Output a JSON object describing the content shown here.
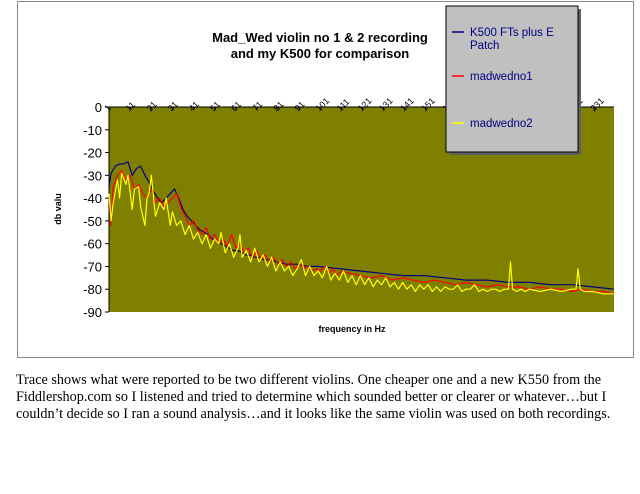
{
  "chart_data": {
    "type": "line",
    "title_line1": "Mad_Wed violin no 1 & 2 recording",
    "title_line2": "and my K500  for comparison",
    "xlabel": "frequency in Hz",
    "ylabel": "db valu",
    "ylim": [
      -90,
      0
    ],
    "yticks": [
      "0",
      "-10",
      "-20",
      "-30",
      "-40",
      "-50",
      "-60",
      "-70",
      "-80",
      "-90"
    ],
    "xticks": [
      "1",
      "11",
      "21",
      "31",
      "41",
      "51",
      "61",
      "71",
      "81",
      "91",
      "101",
      "111",
      "121",
      "131",
      "141",
      "151",
      "161",
      "171",
      "181",
      "191",
      "201",
      "211",
      "221",
      "231"
    ],
    "x_range": [
      1,
      240
    ],
    "plot_background": "#808000",
    "legend_position": "top-right",
    "series": [
      {
        "name": "K500 FTs plus E\nPatch",
        "color": "#000080",
        "points": [
          [
            1,
            -35
          ],
          [
            2,
            -29
          ],
          [
            4,
            -26
          ],
          [
            6,
            -25
          ],
          [
            8,
            -25
          ],
          [
            10,
            -24
          ],
          [
            12,
            -30
          ],
          [
            14,
            -27
          ],
          [
            16,
            -26
          ],
          [
            18,
            -30
          ],
          [
            20,
            -33
          ],
          [
            22,
            -37
          ],
          [
            24,
            -40
          ],
          [
            26,
            -42
          ],
          [
            28,
            -40
          ],
          [
            30,
            -38
          ],
          [
            32,
            -36
          ],
          [
            34,
            -40
          ],
          [
            36,
            -45
          ],
          [
            38,
            -48
          ],
          [
            40,
            -50
          ],
          [
            42,
            -52
          ],
          [
            44,
            -54
          ],
          [
            46,
            -55
          ],
          [
            48,
            -56
          ],
          [
            50,
            -58
          ],
          [
            52,
            -59
          ],
          [
            54,
            -60
          ],
          [
            56,
            -61
          ],
          [
            58,
            -62
          ],
          [
            60,
            -63
          ],
          [
            62,
            -63
          ],
          [
            64,
            -64
          ],
          [
            66,
            -65
          ],
          [
            68,
            -65
          ],
          [
            70,
            -66
          ],
          [
            72,
            -66
          ],
          [
            74,
            -67
          ],
          [
            76,
            -67
          ],
          [
            78,
            -67
          ],
          [
            80,
            -68
          ],
          [
            85,
            -69
          ],
          [
            90,
            -69
          ],
          [
            95,
            -70
          ],
          [
            100,
            -70
          ],
          [
            110,
            -71
          ],
          [
            120,
            -72
          ],
          [
            130,
            -73
          ],
          [
            140,
            -74
          ],
          [
            150,
            -74
          ],
          [
            160,
            -75
          ],
          [
            170,
            -76
          ],
          [
            180,
            -76
          ],
          [
            190,
            -77
          ],
          [
            200,
            -77
          ],
          [
            210,
            -78
          ],
          [
            220,
            -78
          ],
          [
            230,
            -79
          ],
          [
            240,
            -80
          ]
        ]
      },
      {
        "name": "madwedno1",
        "color": "#ff0000",
        "points": [
          [
            1,
            -40
          ],
          [
            2,
            -52
          ],
          [
            3,
            -35
          ],
          [
            5,
            -30
          ],
          [
            7,
            -28
          ],
          [
            9,
            -32
          ],
          [
            11,
            -30
          ],
          [
            13,
            -36
          ],
          [
            15,
            -34
          ],
          [
            17,
            -38
          ],
          [
            19,
            -40
          ],
          [
            21,
            -36
          ],
          [
            23,
            -42
          ],
          [
            25,
            -40
          ],
          [
            27,
            -44
          ],
          [
            29,
            -42
          ],
          [
            31,
            -40
          ],
          [
            33,
            -38
          ],
          [
            35,
            -44
          ],
          [
            37,
            -48
          ],
          [
            39,
            -52
          ],
          [
            41,
            -50
          ],
          [
            43,
            -54
          ],
          [
            45,
            -56
          ],
          [
            47,
            -53
          ],
          [
            49,
            -58
          ],
          [
            51,
            -56
          ],
          [
            53,
            -60
          ],
          [
            55,
            -58
          ],
          [
            57,
            -61
          ],
          [
            59,
            -56
          ],
          [
            61,
            -62
          ],
          [
            63,
            -60
          ],
          [
            65,
            -64
          ],
          [
            67,
            -62
          ],
          [
            69,
            -66
          ],
          [
            71,
            -63
          ],
          [
            73,
            -67
          ],
          [
            75,
            -65
          ],
          [
            77,
            -68
          ],
          [
            79,
            -66
          ],
          [
            81,
            -69
          ],
          [
            83,
            -67
          ],
          [
            85,
            -70
          ],
          [
            87,
            -68
          ],
          [
            89,
            -71
          ],
          [
            91,
            -69
          ],
          [
            93,
            -71
          ],
          [
            95,
            -70
          ],
          [
            97,
            -72
          ],
          [
            99,
            -71
          ],
          [
            101,
            -72
          ],
          [
            103,
            -70
          ],
          [
            105,
            -73
          ],
          [
            107,
            -71
          ],
          [
            109,
            -74
          ],
          [
            111,
            -72
          ],
          [
            115,
            -73
          ],
          [
            120,
            -74
          ],
          [
            125,
            -75
          ],
          [
            130,
            -74
          ],
          [
            135,
            -76
          ],
          [
            140,
            -75
          ],
          [
            145,
            -76
          ],
          [
            150,
            -77
          ],
          [
            155,
            -76
          ],
          [
            160,
            -77
          ],
          [
            165,
            -78
          ],
          [
            170,
            -77
          ],
          [
            175,
            -78
          ],
          [
            180,
            -79
          ],
          [
            185,
            -78
          ],
          [
            190,
            -79
          ],
          [
            195,
            -79
          ],
          [
            200,
            -80
          ],
          [
            205,
            -79
          ],
          [
            210,
            -80
          ],
          [
            215,
            -80
          ],
          [
            220,
            -81
          ],
          [
            225,
            -80
          ],
          [
            230,
            -81
          ],
          [
            235,
            -81
          ],
          [
            240,
            -82
          ]
        ]
      },
      {
        "name": "madwedno2",
        "color": "#ffff00",
        "points": [
          [
            1,
            -38
          ],
          [
            2,
            -50
          ],
          [
            3,
            -42
          ],
          [
            5,
            -32
          ],
          [
            6,
            -40
          ],
          [
            7,
            -29
          ],
          [
            9,
            -34
          ],
          [
            10,
            -30
          ],
          [
            12,
            -45
          ],
          [
            13,
            -36
          ],
          [
            15,
            -35
          ],
          [
            16,
            -44
          ],
          [
            18,
            -52
          ],
          [
            19,
            -40
          ],
          [
            20,
            -38
          ],
          [
            21,
            -30
          ],
          [
            23,
            -48
          ],
          [
            25,
            -42
          ],
          [
            27,
            -45
          ],
          [
            28,
            -40
          ],
          [
            30,
            -52
          ],
          [
            31,
            -46
          ],
          [
            33,
            -52
          ],
          [
            35,
            -50
          ],
          [
            37,
            -56
          ],
          [
            39,
            -52
          ],
          [
            41,
            -58
          ],
          [
            43,
            -55
          ],
          [
            45,
            -60
          ],
          [
            47,
            -56
          ],
          [
            49,
            -62
          ],
          [
            51,
            -58
          ],
          [
            53,
            -60
          ],
          [
            54,
            -55
          ],
          [
            56,
            -64
          ],
          [
            58,
            -60
          ],
          [
            60,
            -66
          ],
          [
            62,
            -62
          ],
          [
            63,
            -56
          ],
          [
            64,
            -66
          ],
          [
            66,
            -63
          ],
          [
            68,
            -68
          ],
          [
            70,
            -62
          ],
          [
            72,
            -68
          ],
          [
            74,
            -65
          ],
          [
            76,
            -70
          ],
          [
            78,
            -66
          ],
          [
            80,
            -72
          ],
          [
            82,
            -68
          ],
          [
            84,
            -72
          ],
          [
            86,
            -70
          ],
          [
            88,
            -74
          ],
          [
            90,
            -71
          ],
          [
            92,
            -67
          ],
          [
            94,
            -74
          ],
          [
            96,
            -70
          ],
          [
            98,
            -74
          ],
          [
            100,
            -72
          ],
          [
            102,
            -75
          ],
          [
            104,
            -70
          ],
          [
            106,
            -76
          ],
          [
            108,
            -73
          ],
          [
            110,
            -76
          ],
          [
            112,
            -72
          ],
          [
            114,
            -77
          ],
          [
            116,
            -74
          ],
          [
            118,
            -78
          ],
          [
            120,
            -74
          ],
          [
            122,
            -78
          ],
          [
            124,
            -75
          ],
          [
            126,
            -79
          ],
          [
            128,
            -76
          ],
          [
            130,
            -78
          ],
          [
            132,
            -75
          ],
          [
            134,
            -79
          ],
          [
            136,
            -77
          ],
          [
            138,
            -80
          ],
          [
            140,
            -77
          ],
          [
            142,
            -80
          ],
          [
            144,
            -78
          ],
          [
            146,
            -81
          ],
          [
            148,
            -78
          ],
          [
            150,
            -80
          ],
          [
            152,
            -78
          ],
          [
            154,
            -81
          ],
          [
            156,
            -79
          ],
          [
            158,
            -81
          ],
          [
            160,
            -79
          ],
          [
            162,
            -80
          ],
          [
            164,
            -80
          ],
          [
            166,
            -78
          ],
          [
            168,
            -81
          ],
          [
            170,
            -80
          ],
          [
            172,
            -80
          ],
          [
            174,
            -78
          ],
          [
            176,
            -81
          ],
          [
            178,
            -80
          ],
          [
            180,
            -81
          ],
          [
            182,
            -80
          ],
          [
            184,
            -80
          ],
          [
            186,
            -81
          ],
          [
            188,
            -80
          ],
          [
            190,
            -80
          ],
          [
            191,
            -68
          ],
          [
            192,
            -80
          ],
          [
            194,
            -81
          ],
          [
            196,
            -80
          ],
          [
            198,
            -81
          ],
          [
            200,
            -80
          ],
          [
            205,
            -81
          ],
          [
            210,
            -80
          ],
          [
            215,
            -81
          ],
          [
            220,
            -80
          ],
          [
            222,
            -80
          ],
          [
            223,
            -71
          ],
          [
            224,
            -80
          ],
          [
            226,
            -81
          ],
          [
            230,
            -81
          ],
          [
            235,
            -82
          ],
          [
            240,
            -82
          ]
        ]
      }
    ]
  },
  "caption": "Trace shows what were reported to be two different violins. One cheaper one and a new K550 from the Fiddlershop.com so I listened and tried to determine which sounded better or clearer or whatever…but I couldn’t decide so I ran a sound analysis…and it looks like the same violin was used on both recordings."
}
